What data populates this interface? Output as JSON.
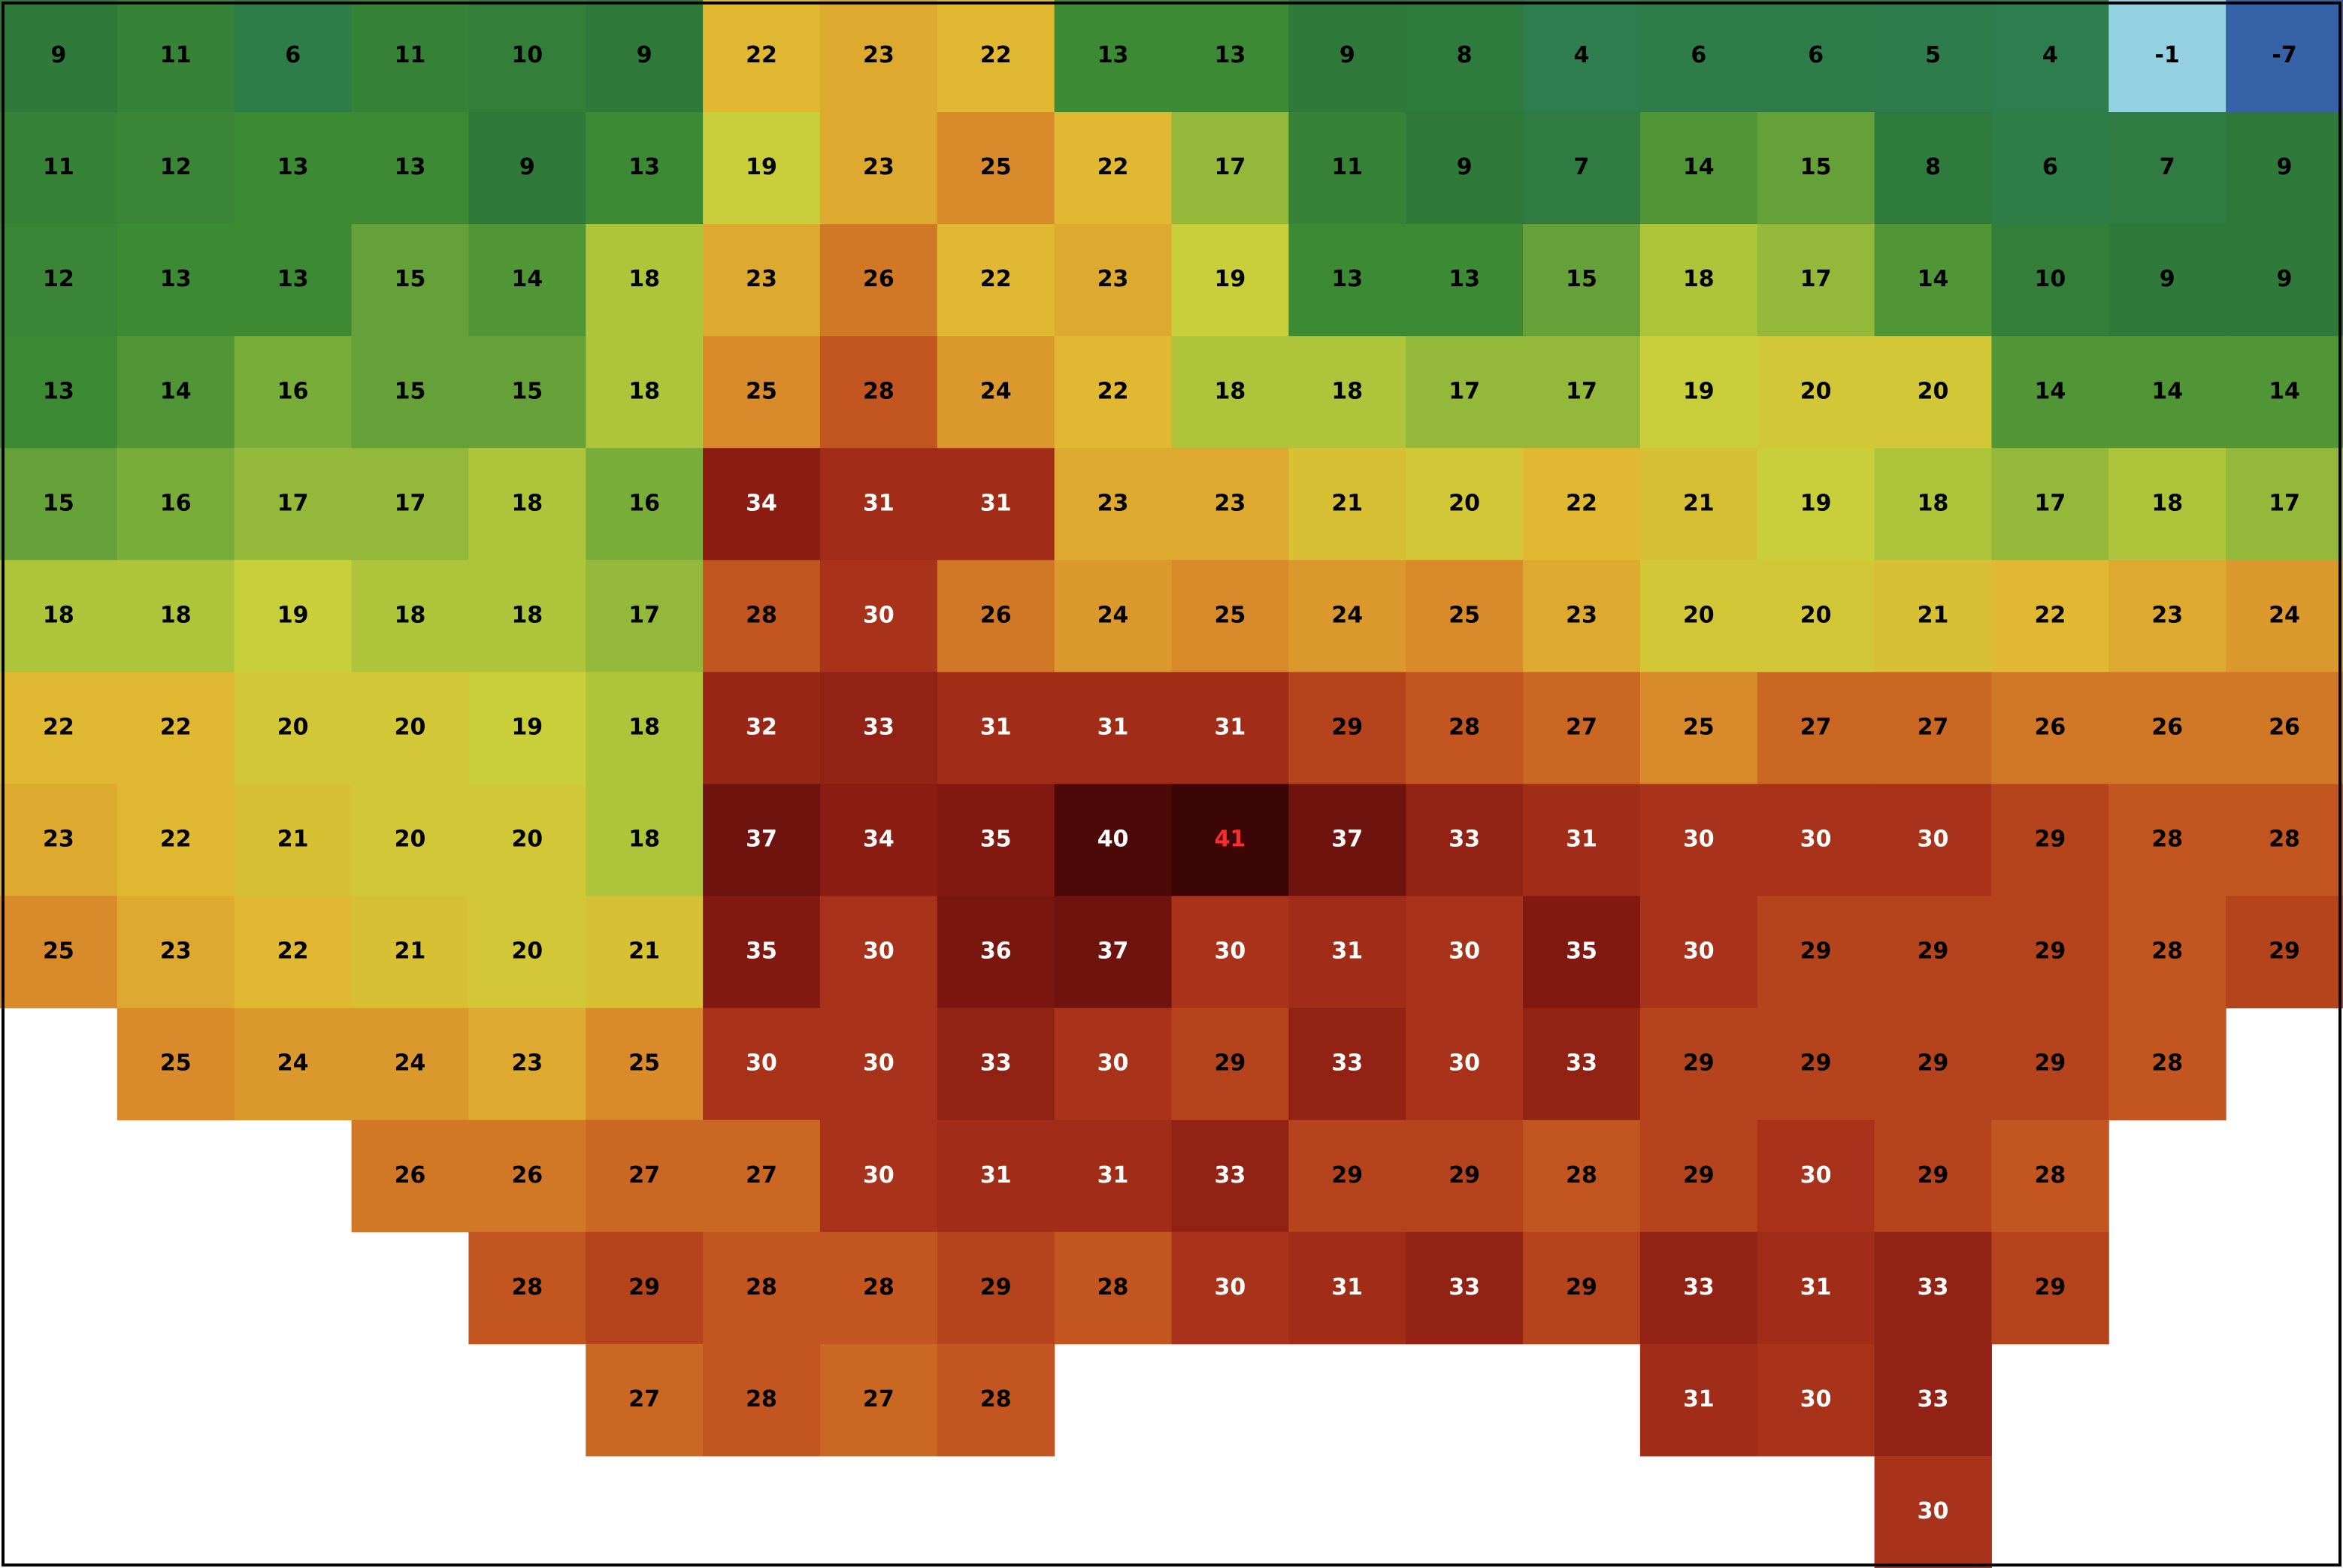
{
  "map": {
    "colorscale": [
      [
        -9,
        "#1c3f8f"
      ],
      [
        -3,
        "#6aa7d8"
      ],
      [
        0,
        "#a8e6e6"
      ],
      [
        4,
        "#2e7d4f"
      ],
      [
        9,
        "#2f7a3a"
      ],
      [
        13,
        "#3d8a34"
      ],
      [
        16,
        "#79ad3a"
      ],
      [
        19,
        "#c9cf3a"
      ],
      [
        22,
        "#e0b832"
      ],
      [
        25,
        "#d98a2a"
      ],
      [
        28,
        "#c25520"
      ],
      [
        30,
        "#a8321a"
      ],
      [
        34,
        "#8a1c12"
      ],
      [
        38,
        "#66100c"
      ],
      [
        41,
        "#3d0606"
      ]
    ],
    "label_colors": [
      {
        "min": 41,
        "color": "#ff2a2a"
      },
      {
        "min": 30,
        "color": "#ffffff"
      },
      {
        "min": -99,
        "color": "#000000"
      }
    ],
    "grid": {
      "rows": [
        [
          9,
          11,
          6,
          11,
          10,
          9,
          22,
          23,
          22,
          13,
          13,
          9,
          8,
          4,
          6,
          6,
          5,
          4,
          -1,
          -7
        ],
        [
          11,
          12,
          13,
          13,
          9,
          13,
          19,
          23,
          25,
          22,
          17,
          11,
          9,
          7,
          14,
          15,
          8,
          6,
          7,
          9
        ],
        [
          12,
          13,
          13,
          15,
          14,
          18,
          23,
          26,
          22,
          23,
          19,
          13,
          13,
          15,
          18,
          17,
          14,
          10,
          9,
          9
        ],
        [
          13,
          14,
          16,
          15,
          15,
          18,
          25,
          28,
          24,
          22,
          18,
          18,
          17,
          17,
          19,
          20,
          20,
          14,
          14,
          14
        ],
        [
          15,
          16,
          17,
          17,
          18,
          16,
          34,
          31,
          31,
          23,
          23,
          21,
          20,
          22,
          21,
          19,
          18,
          17,
          18,
          17
        ],
        [
          18,
          18,
          19,
          18,
          18,
          17,
          28,
          30,
          26,
          24,
          25,
          24,
          25,
          23,
          20,
          20,
          21,
          22,
          23,
          24
        ],
        [
          22,
          22,
          20,
          20,
          19,
          18,
          32,
          33,
          31,
          31,
          31,
          29,
          28,
          27,
          25,
          27,
          27,
          26,
          26,
          26
        ],
        [
          23,
          22,
          21,
          20,
          20,
          18,
          37,
          34,
          35,
          40,
          41,
          37,
          33,
          31,
          30,
          30,
          30,
          29,
          28,
          28
        ],
        [
          25,
          23,
          22,
          21,
          20,
          21,
          35,
          30,
          36,
          37,
          30,
          31,
          30,
          35,
          30,
          29,
          29,
          29,
          28,
          29
        ],
        [
          null,
          25,
          24,
          24,
          23,
          25,
          30,
          30,
          33,
          30,
          29,
          33,
          30,
          33,
          29,
          29,
          29,
          29,
          28,
          null
        ],
        [
          null,
          null,
          null,
          26,
          26,
          27,
          27,
          30,
          31,
          31,
          33,
          29,
          29,
          28,
          29,
          30,
          29,
          28,
          null,
          null
        ],
        [
          null,
          null,
          null,
          null,
          28,
          29,
          28,
          28,
          29,
          28,
          30,
          31,
          33,
          29,
          33,
          31,
          33,
          29,
          null,
          null
        ],
        [
          null,
          null,
          null,
          null,
          null,
          27,
          28,
          27,
          28,
          null,
          null,
          null,
          null,
          null,
          31,
          30,
          33,
          null,
          null,
          null
        ],
        [
          null,
          null,
          null,
          null,
          null,
          null,
          null,
          null,
          null,
          null,
          null,
          null,
          null,
          null,
          null,
          null,
          30,
          null,
          null,
          null
        ]
      ]
    }
  }
}
